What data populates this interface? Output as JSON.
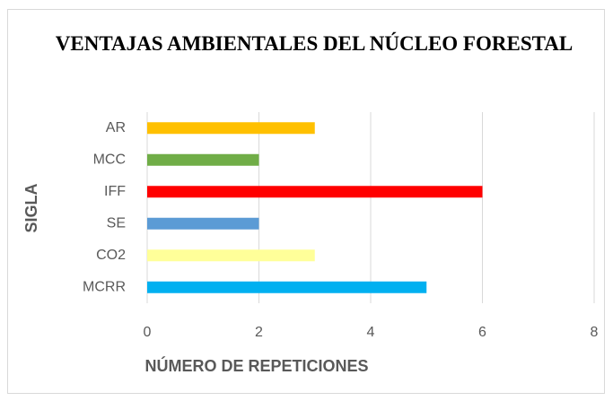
{
  "chart_data": {
    "type": "barh",
    "title": "VENTAJAS AMBIENTALES DEL NÚCLEO FORESTAL",
    "xlabel": "NÚMERO DE REPETICIONES",
    "ylabel": "SIGLA",
    "categories": [
      "AR",
      "MCC",
      "IFF",
      "SE",
      "CO2",
      "MCRR"
    ],
    "values": [
      3,
      2,
      6,
      2,
      3,
      5
    ],
    "colors": [
      "#ffc000",
      "#70ad47",
      "#ff0000",
      "#5b9bd5",
      "#ffff99",
      "#00b0f0"
    ],
    "xlim": [
      0,
      8
    ],
    "xticks": [
      0,
      2,
      4,
      6,
      8
    ],
    "grid": true
  }
}
